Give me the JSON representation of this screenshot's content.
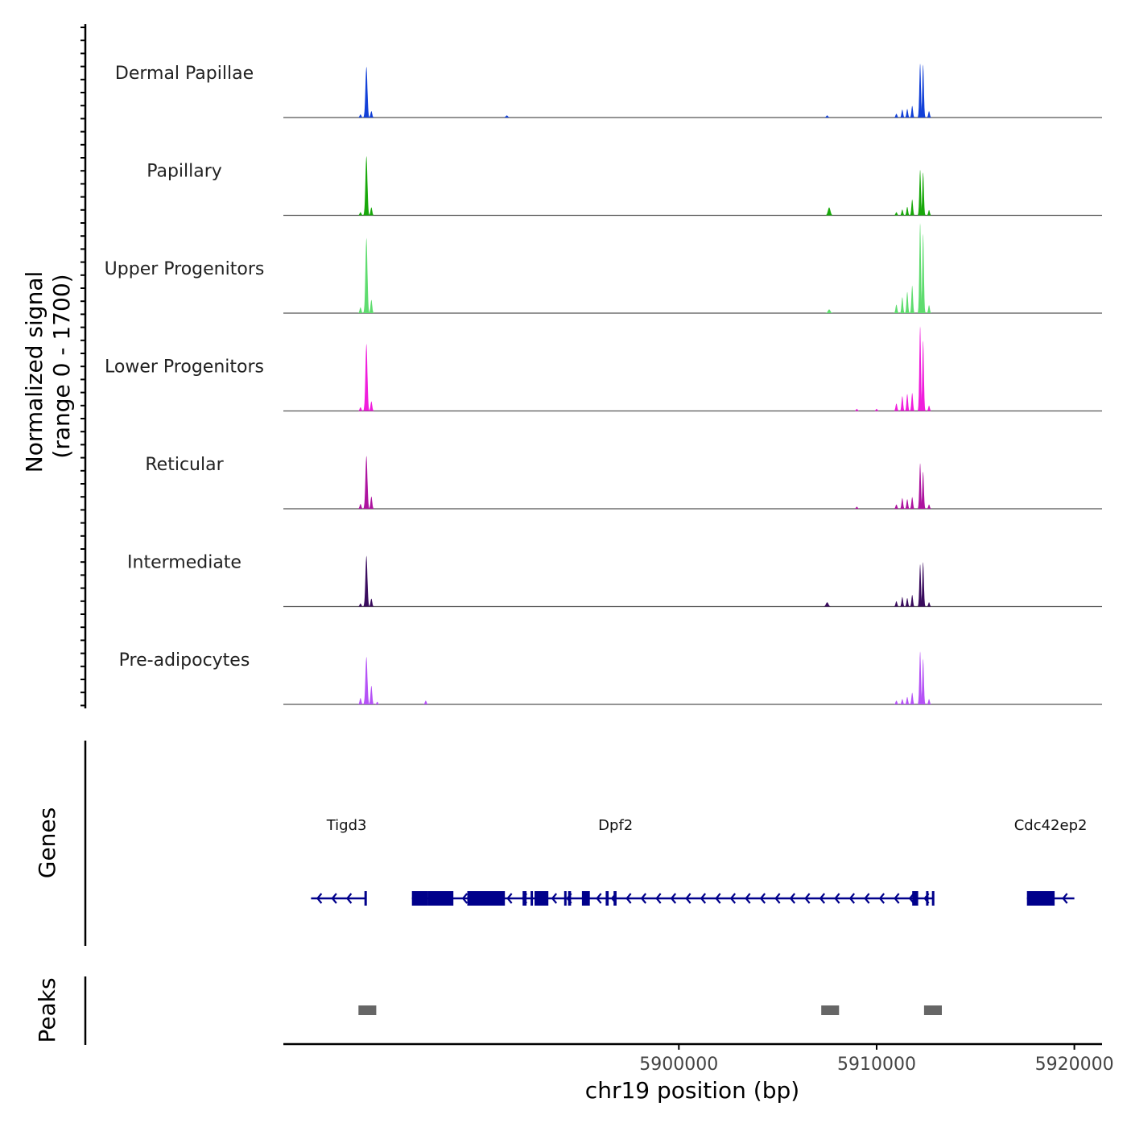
{
  "chart_data": {
    "type": "area",
    "title": "",
    "ylabel_line1": "Normalized signal",
    "ylabel_line2": "(range 0 - 1700)",
    "y_range": [
      0,
      1700
    ],
    "xlabel": "chr19 position (bp)",
    "x_range": [
      5880000,
      5921400
    ],
    "x_ticks": [
      5900000,
      5910000,
      5920000
    ],
    "x_tick_labels": [
      "5900000",
      "5910000",
      "5920000"
    ],
    "tracks": [
      {
        "name": "Dermal Papillae",
        "color": "#1240d8",
        "peaks": [
          [
            5884200,
            960,
            70
          ],
          [
            5884450,
            120,
            60
          ],
          [
            5883900,
            60,
            60
          ],
          [
            5891300,
            40,
            80
          ],
          [
            5907500,
            40,
            70
          ],
          [
            5912200,
            1020,
            55
          ],
          [
            5912350,
            1000,
            55
          ],
          [
            5911800,
            220,
            45
          ],
          [
            5911550,
            160,
            45
          ],
          [
            5911300,
            150,
            45
          ],
          [
            5911000,
            70,
            60
          ],
          [
            5912650,
            120,
            50
          ]
        ]
      },
      {
        "name": "Papillary",
        "color": "#18a80a",
        "peaks": [
          [
            5884200,
            1120,
            70
          ],
          [
            5884450,
            150,
            60
          ],
          [
            5883900,
            60,
            60
          ],
          [
            5907600,
            150,
            90
          ],
          [
            5912200,
            860,
            55
          ],
          [
            5912350,
            810,
            55
          ],
          [
            5911800,
            300,
            45
          ],
          [
            5911550,
            160,
            45
          ],
          [
            5911300,
            110,
            45
          ],
          [
            5911000,
            60,
            60
          ],
          [
            5912650,
            100,
            50
          ]
        ]
      },
      {
        "name": "Upper Progenitors",
        "color": "#5edc6e",
        "peaks": [
          [
            5884200,
            1420,
            70
          ],
          [
            5884450,
            250,
            60
          ],
          [
            5883900,
            110,
            60
          ],
          [
            5907600,
            70,
            90
          ],
          [
            5912200,
            1700,
            55
          ],
          [
            5912350,
            1500,
            55
          ],
          [
            5911800,
            520,
            45
          ],
          [
            5911550,
            400,
            45
          ],
          [
            5911300,
            300,
            45
          ],
          [
            5911000,
            160,
            60
          ],
          [
            5912650,
            150,
            50
          ]
        ]
      },
      {
        "name": "Lower Progenitors",
        "color": "#f01ddc",
        "peaks": [
          [
            5884200,
            1270,
            70
          ],
          [
            5884450,
            180,
            60
          ],
          [
            5883900,
            70,
            60
          ],
          [
            5909000,
            40,
            60
          ],
          [
            5910000,
            40,
            60
          ],
          [
            5912200,
            1600,
            55
          ],
          [
            5912350,
            1330,
            55
          ],
          [
            5911800,
            340,
            45
          ],
          [
            5911550,
            320,
            45
          ],
          [
            5911300,
            280,
            45
          ],
          [
            5911000,
            140,
            60
          ],
          [
            5912650,
            100,
            50
          ]
        ]
      },
      {
        "name": "Reticular",
        "color": "#ad139f",
        "peaks": [
          [
            5884200,
            1000,
            70
          ],
          [
            5884450,
            230,
            60
          ],
          [
            5883900,
            90,
            60
          ],
          [
            5909000,
            40,
            60
          ],
          [
            5912200,
            860,
            55
          ],
          [
            5912350,
            700,
            55
          ],
          [
            5911800,
            220,
            45
          ],
          [
            5911550,
            180,
            45
          ],
          [
            5911300,
            200,
            45
          ],
          [
            5911000,
            80,
            60
          ],
          [
            5912650,
            80,
            50
          ]
        ]
      },
      {
        "name": "Intermediate",
        "color": "#3a0c5e",
        "peaks": [
          [
            5884200,
            960,
            70
          ],
          [
            5884450,
            150,
            60
          ],
          [
            5883900,
            60,
            60
          ],
          [
            5907500,
            80,
            90
          ],
          [
            5912200,
            800,
            55
          ],
          [
            5912350,
            840,
            55
          ],
          [
            5911800,
            220,
            45
          ],
          [
            5911550,
            160,
            45
          ],
          [
            5911300,
            180,
            45
          ],
          [
            5911000,
            100,
            60
          ],
          [
            5912650,
            80,
            50
          ]
        ]
      },
      {
        "name": "Pre-adipocytes",
        "color": "#b552f6",
        "peaks": [
          [
            5884200,
            900,
            70
          ],
          [
            5884450,
            350,
            60
          ],
          [
            5883900,
            120,
            60
          ],
          [
            5884750,
            50,
            50
          ],
          [
            5887200,
            70,
            60
          ],
          [
            5912200,
            1000,
            55
          ],
          [
            5912350,
            860,
            55
          ],
          [
            5911800,
            220,
            45
          ],
          [
            5911550,
            140,
            45
          ],
          [
            5911300,
            100,
            45
          ],
          [
            5911000,
            70,
            60
          ],
          [
            5912650,
            100,
            50
          ]
        ]
      }
    ],
    "genes_label": "Genes",
    "genes": [
      {
        "name": "Tigd3",
        "label_pos": 5883200,
        "strand": "-",
        "start": 5881400,
        "end": 5884200,
        "exons": [
          [
            5884100,
            5884220
          ]
        ]
      },
      {
        "name": "Dpf2",
        "label_pos": 5896800,
        "strand": "-",
        "start": 5886500,
        "end": 5912900,
        "exons": [
          [
            5886500,
            5887300
          ],
          [
            5887300,
            5888600
          ],
          [
            5889300,
            5891200
          ],
          [
            5892100,
            5892300
          ],
          [
            5892500,
            5892600
          ],
          [
            5892700,
            5893400
          ],
          [
            5894200,
            5894300
          ],
          [
            5894400,
            5894550
          ],
          [
            5895100,
            5895500
          ],
          [
            5896300,
            5896450
          ],
          [
            5896700,
            5896850
          ],
          [
            5911800,
            5912100
          ],
          [
            5912500,
            5912600
          ],
          [
            5912800,
            5912900
          ]
        ]
      },
      {
        "name": "Cdc42ep2",
        "label_pos": 5918800,
        "strand": "-",
        "start": 5917600,
        "end": 5920000,
        "exons": [
          [
            5917600,
            5919000
          ]
        ]
      }
    ],
    "peaks_label": "Peaks",
    "peak_regions": [
      [
        5883800,
        5884700
      ],
      [
        5907200,
        5908100
      ],
      [
        5912400,
        5913300
      ]
    ]
  }
}
